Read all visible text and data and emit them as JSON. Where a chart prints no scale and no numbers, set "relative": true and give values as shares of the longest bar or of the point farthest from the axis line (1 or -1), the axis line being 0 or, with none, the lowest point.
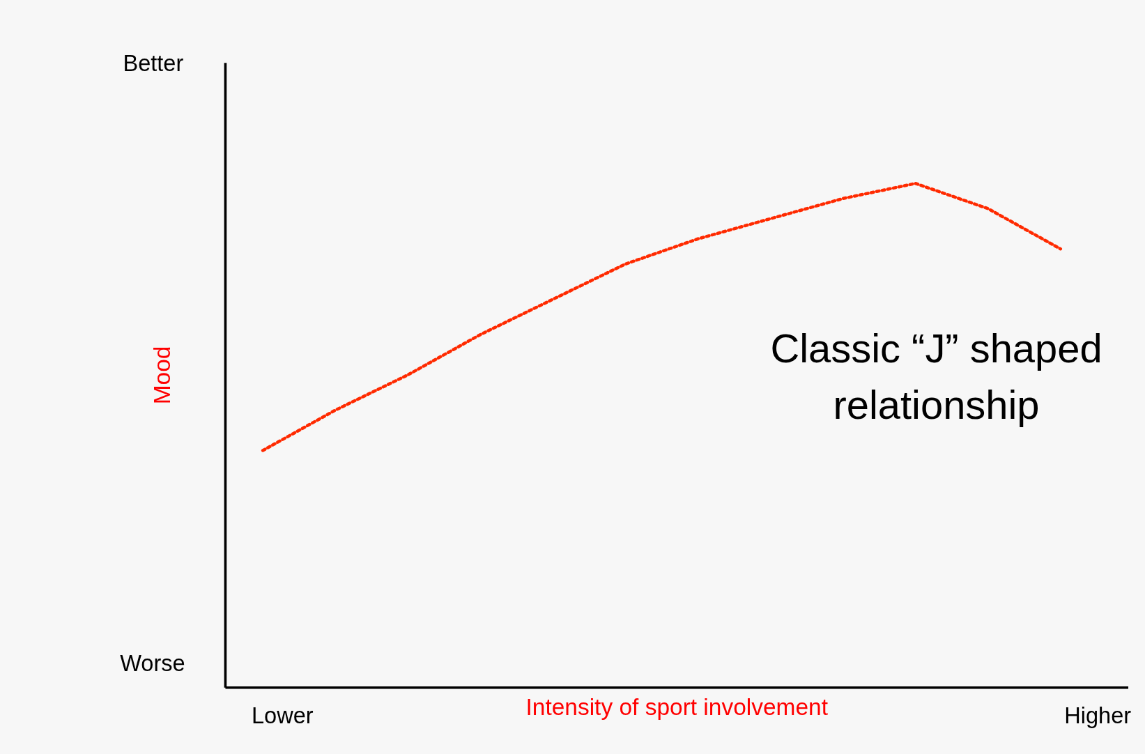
{
  "chart_data": {
    "type": "line",
    "relative": true,
    "xlabel": "Intensity of sport involvement",
    "ylabel": "Mood",
    "categories": [
      null,
      null,
      null,
      null,
      null,
      null,
      null,
      null,
      null,
      null,
      null,
      null
    ],
    "series": [
      {
        "color": "#ff2a00",
        "values": [
          0.47,
          0.55,
          0.62,
          0.7,
          0.77,
          0.84,
          0.89,
          0.93,
          0.97,
          1.0,
          0.95,
          0.87
        ]
      }
    ],
    "line_style": "dotted",
    "grid": false,
    "legend": false,
    "annotations": [
      "Better",
      "Worse",
      "Lower",
      "Higher",
      "Classic “J” shaped\nrelationship"
    ]
  }
}
